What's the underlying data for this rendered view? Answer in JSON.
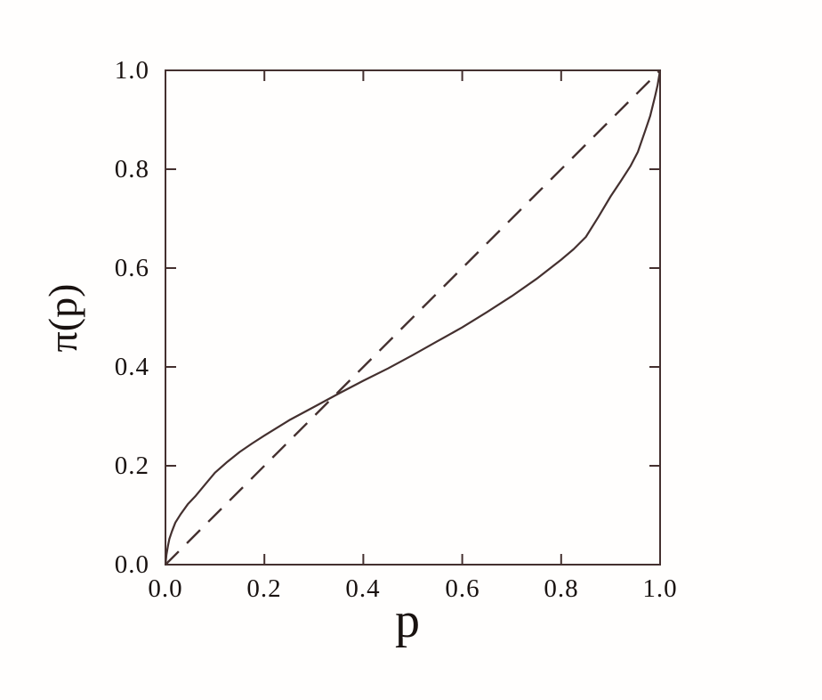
{
  "figure": {
    "background": "#fffefd",
    "line_color": "#44302f",
    "text_color": "#191210"
  },
  "chart_data": {
    "type": "line",
    "title": "",
    "xlabel": "p",
    "ylabel": "π(p)",
    "xlim": [
      0,
      1
    ],
    "ylim": [
      0,
      1
    ],
    "grid": false,
    "legend": "none",
    "x_ticks": [
      0,
      0.2,
      0.4,
      0.6,
      0.8,
      1
    ],
    "y_ticks": [
      0,
      0.2,
      0.4,
      0.6,
      0.8,
      1
    ],
    "x_tick_labels": [
      "0.0",
      "0.2",
      "0.4",
      "0.6",
      "0.8",
      "1.0"
    ],
    "y_tick_labels": [
      "0.0",
      "0.2",
      "0.4",
      "0.6",
      "0.8",
      "1.0"
    ],
    "crossing_point": {
      "p": 0.34,
      "w": 0.34
    },
    "series": [
      {
        "name": "probability-weighting-curve",
        "style": "solid",
        "x": [
          0,
          0.002,
          0.005,
          0.008,
          0.013,
          0.02,
          0.03,
          0.045,
          0.06,
          0.08,
          0.1,
          0.125,
          0.15,
          0.175,
          0.2,
          0.25,
          0.3,
          0.35,
          0.4,
          0.45,
          0.5,
          0.55,
          0.6,
          0.65,
          0.7,
          0.75,
          0.8,
          0.825,
          0.85,
          0.875,
          0.9,
          0.92,
          0.94,
          0.955,
          0.97,
          0.98,
          0.99,
          0.995,
          1
        ],
        "y": [
          0,
          0.02,
          0.038,
          0.052,
          0.067,
          0.085,
          0.101,
          0.122,
          0.138,
          0.162,
          0.186,
          0.208,
          0.228,
          0.245,
          0.261,
          0.292,
          0.319,
          0.346,
          0.372,
          0.397,
          0.424,
          0.452,
          0.48,
          0.511,
          0.543,
          0.578,
          0.617,
          0.638,
          0.663,
          0.703,
          0.745,
          0.775,
          0.806,
          0.835,
          0.878,
          0.908,
          0.948,
          0.97,
          1
        ]
      },
      {
        "name": "identity-diagonal",
        "style": "dashed",
        "x": [
          0,
          1
        ],
        "y": [
          0,
          1
        ]
      }
    ]
  }
}
